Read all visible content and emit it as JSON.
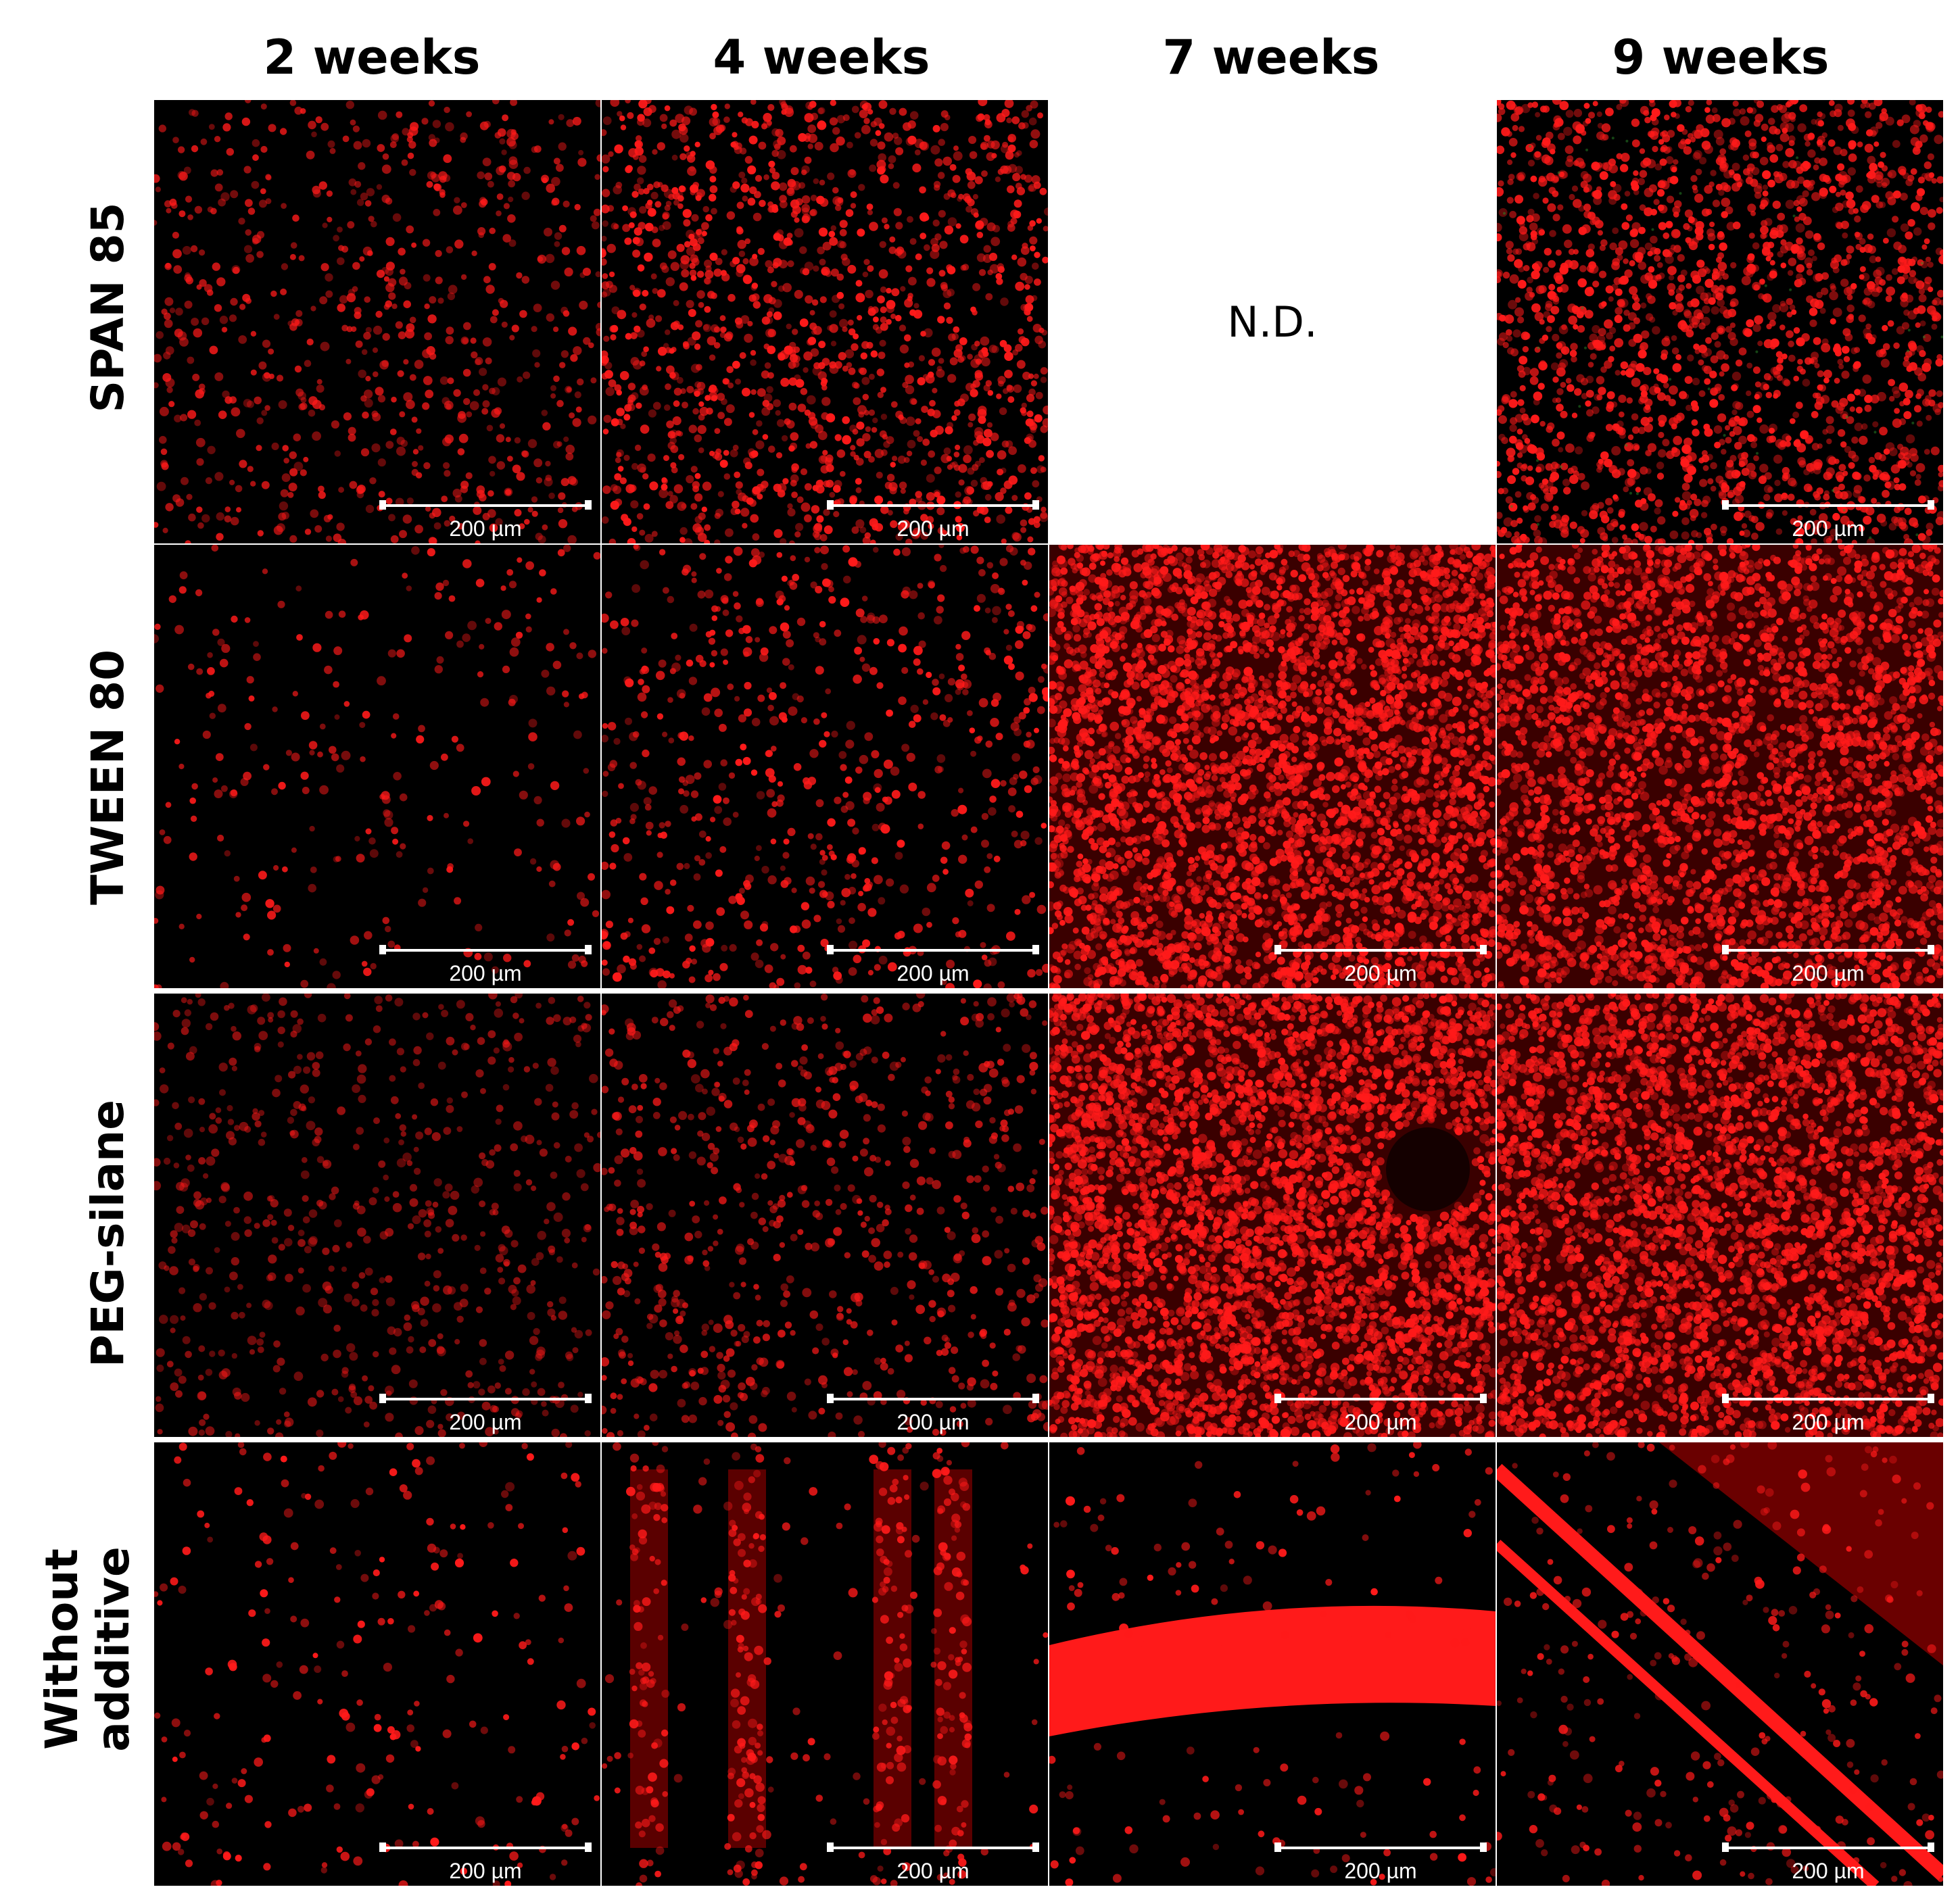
{
  "columns": [
    "2 weeks",
    "4 weeks",
    "7 weeks",
    "9 weeks"
  ],
  "rows": [
    "SPAN 85",
    "TWEEN  80",
    "PEG-silane",
    "Without\nadditive"
  ],
  "not_determined_label": "N.D.",
  "scale_bar_label": "200 µm",
  "colors": {
    "fluorescence": "#ff1a1a",
    "background": "#000000",
    "scale_bar": "#ffffff"
  }
}
